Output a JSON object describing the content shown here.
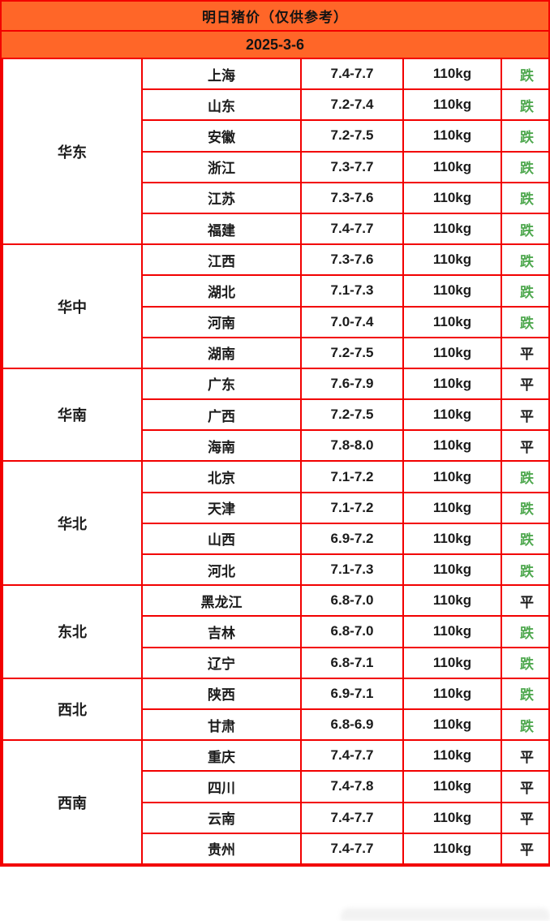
{
  "header": {
    "title": "明日猪价（仅供参考）",
    "date": "2025-3-6"
  },
  "trends": {
    "down_label": "跌",
    "flat_label": "平"
  },
  "colors": {
    "header_bg": "#FF6628",
    "border": "#F20000",
    "trend_down": "#4FA84F",
    "trend_flat": "#1B1B1B",
    "text": "#1B1B1B"
  },
  "regions": [
    {
      "name": "华东",
      "rows": [
        {
          "province": "上海",
          "price": "7.4-7.7",
          "weight": "110kg",
          "trend": "跌"
        },
        {
          "province": "山东",
          "price": "7.2-7.4",
          "weight": "110kg",
          "trend": "跌"
        },
        {
          "province": "安徽",
          "price": "7.2-7.5",
          "weight": "110kg",
          "trend": "跌"
        },
        {
          "province": "浙江",
          "price": "7.3-7.7",
          "weight": "110kg",
          "trend": "跌"
        },
        {
          "province": "江苏",
          "price": "7.3-7.6",
          "weight": "110kg",
          "trend": "跌"
        },
        {
          "province": "福建",
          "price": "7.4-7.7",
          "weight": "110kg",
          "trend": "跌"
        }
      ]
    },
    {
      "name": "华中",
      "rows": [
        {
          "province": "江西",
          "price": "7.3-7.6",
          "weight": "110kg",
          "trend": "跌"
        },
        {
          "province": "湖北",
          "price": "7.1-7.3",
          "weight": "110kg",
          "trend": "跌"
        },
        {
          "province": "河南",
          "price": "7.0-7.4",
          "weight": "110kg",
          "trend": "跌"
        },
        {
          "province": "湖南",
          "price": "7.2-7.5",
          "weight": "110kg",
          "trend": "平"
        }
      ]
    },
    {
      "name": "华南",
      "rows": [
        {
          "province": "广东",
          "price": "7.6-7.9",
          "weight": "110kg",
          "trend": "平"
        },
        {
          "province": "广西",
          "price": "7.2-7.5",
          "weight": "110kg",
          "trend": "平"
        },
        {
          "province": "海南",
          "price": "7.8-8.0",
          "weight": "110kg",
          "trend": "平"
        }
      ]
    },
    {
      "name": "华北",
      "rows": [
        {
          "province": "北京",
          "price": "7.1-7.2",
          "weight": "110kg",
          "trend": "跌"
        },
        {
          "province": "天津",
          "price": "7.1-7.2",
          "weight": "110kg",
          "trend": "跌"
        },
        {
          "province": "山西",
          "price": "6.9-7.2",
          "weight": "110kg",
          "trend": "跌"
        },
        {
          "province": "河北",
          "price": "7.1-7.3",
          "weight": "110kg",
          "trend": "跌"
        }
      ]
    },
    {
      "name": "东北",
      "rows": [
        {
          "province": "黑龙江",
          "price": "6.8-7.0",
          "weight": "110kg",
          "trend": "平"
        },
        {
          "province": "吉林",
          "price": "6.8-7.0",
          "weight": "110kg",
          "trend": "跌"
        },
        {
          "province": "辽宁",
          "price": "6.8-7.1",
          "weight": "110kg",
          "trend": "跌"
        }
      ]
    },
    {
      "name": "西北",
      "rows": [
        {
          "province": "陕西",
          "price": "6.9-7.1",
          "weight": "110kg",
          "trend": "跌"
        },
        {
          "province": "甘肃",
          "price": "6.8-6.9",
          "weight": "110kg",
          "trend": "跌"
        }
      ]
    },
    {
      "name": "西南",
      "rows": [
        {
          "province": "重庆",
          "price": "7.4-7.7",
          "weight": "110kg",
          "trend": "平"
        },
        {
          "province": "四川",
          "price": "7.4-7.8",
          "weight": "110kg",
          "trend": "平"
        },
        {
          "province": "云南",
          "price": "7.4-7.7",
          "weight": "110kg",
          "trend": "平"
        },
        {
          "province": "贵州",
          "price": "7.4-7.7",
          "weight": "110kg",
          "trend": "平"
        }
      ]
    }
  ],
  "chart_data": {
    "type": "table",
    "title": "明日猪价（仅供参考）",
    "date": "2025-3-6",
    "rows": [
      {
        "region": "华东",
        "province": "上海",
        "price": "7.4-7.7",
        "weight": "110kg",
        "trend": "跌"
      },
      {
        "region": "华东",
        "province": "山东",
        "price": "7.2-7.4",
        "weight": "110kg",
        "trend": "跌"
      },
      {
        "region": "华东",
        "province": "安徽",
        "price": "7.2-7.5",
        "weight": "110kg",
        "trend": "跌"
      },
      {
        "region": "华东",
        "province": "浙江",
        "price": "7.3-7.7",
        "weight": "110kg",
        "trend": "跌"
      },
      {
        "region": "华东",
        "province": "江苏",
        "price": "7.3-7.6",
        "weight": "110kg",
        "trend": "跌"
      },
      {
        "region": "华东",
        "province": "福建",
        "price": "7.4-7.7",
        "weight": "110kg",
        "trend": "跌"
      },
      {
        "region": "华中",
        "province": "江西",
        "price": "7.3-7.6",
        "weight": "110kg",
        "trend": "跌"
      },
      {
        "region": "华中",
        "province": "湖北",
        "price": "7.1-7.3",
        "weight": "110kg",
        "trend": "跌"
      },
      {
        "region": "华中",
        "province": "河南",
        "price": "7.0-7.4",
        "weight": "110kg",
        "trend": "跌"
      },
      {
        "region": "华中",
        "province": "湖南",
        "price": "7.2-7.5",
        "weight": "110kg",
        "trend": "平"
      },
      {
        "region": "华南",
        "province": "广东",
        "price": "7.6-7.9",
        "weight": "110kg",
        "trend": "平"
      },
      {
        "region": "华南",
        "province": "广西",
        "price": "7.2-7.5",
        "weight": "110kg",
        "trend": "平"
      },
      {
        "region": "华南",
        "province": "海南",
        "price": "7.8-8.0",
        "weight": "110kg",
        "trend": "平"
      },
      {
        "region": "华北",
        "province": "北京",
        "price": "7.1-7.2",
        "weight": "110kg",
        "trend": "跌"
      },
      {
        "region": "华北",
        "province": "天津",
        "price": "7.1-7.2",
        "weight": "110kg",
        "trend": "跌"
      },
      {
        "region": "华北",
        "province": "山西",
        "price": "6.9-7.2",
        "weight": "110kg",
        "trend": "跌"
      },
      {
        "region": "华北",
        "province": "河北",
        "price": "7.1-7.3",
        "weight": "110kg",
        "trend": "跌"
      },
      {
        "region": "东北",
        "province": "黑龙江",
        "price": "6.8-7.0",
        "weight": "110kg",
        "trend": "平"
      },
      {
        "region": "东北",
        "province": "吉林",
        "price": "6.8-7.0",
        "weight": "110kg",
        "trend": "跌"
      },
      {
        "region": "东北",
        "province": "辽宁",
        "price": "6.8-7.1",
        "weight": "110kg",
        "trend": "跌"
      },
      {
        "region": "西北",
        "province": "陕西",
        "price": "6.9-7.1",
        "weight": "110kg",
        "trend": "跌"
      },
      {
        "region": "西北",
        "province": "甘肃",
        "price": "6.8-6.9",
        "weight": "110kg",
        "trend": "跌"
      },
      {
        "region": "西南",
        "province": "重庆",
        "price": "7.4-7.7",
        "weight": "110kg",
        "trend": "平"
      },
      {
        "region": "西南",
        "province": "四川",
        "price": "7.4-7.8",
        "weight": "110kg",
        "trend": "平"
      },
      {
        "region": "西南",
        "province": "云南",
        "price": "7.4-7.7",
        "weight": "110kg",
        "trend": "平"
      },
      {
        "region": "西南",
        "province": "贵州",
        "price": "7.4-7.7",
        "weight": "110kg",
        "trend": "平"
      }
    ]
  }
}
